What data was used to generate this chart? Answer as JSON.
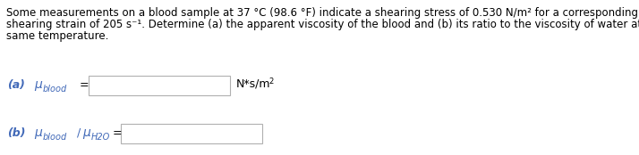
{
  "background_color": "#ffffff",
  "text_color": "#000000",
  "blue_color": "#4169b8",
  "font_size_para": 8.5,
  "font_size_label": 9.0,
  "font_size_sub": 7.0,
  "font_size_unit": 9.0,
  "para_line1": "Some measurements on a blood sample at 37 °C (98.6 °F) indicate a shearing stress of 0.530 N/m² for a corresponding rate of",
  "para_line2": "shearing strain of 205 s⁻¹. Determine (a) the apparent viscosity of the blood and (b) its ratio to the viscosity of water at the",
  "para_line3": "same temperature.",
  "a_label": "(a)",
  "b_label": "(b)",
  "mu": "μ",
  "blood_sub": "blood",
  "h2o_sub": "H2O",
  "equals": "=",
  "unit": "N*s/m²",
  "box_edge_color": "#b0b0b0",
  "box_face_color": "#ffffff"
}
